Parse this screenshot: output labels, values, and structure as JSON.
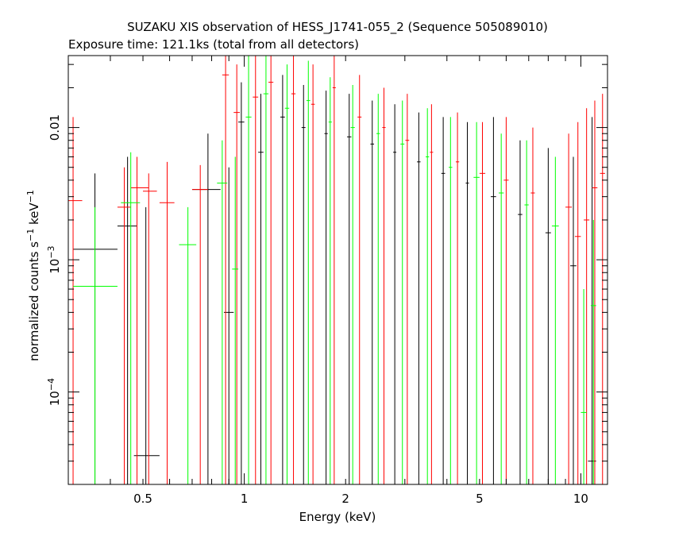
{
  "chart_data": {
    "type": "scatter",
    "title": "SUZAKU XIS observation of HESS_J1741-055_2 (Sequence 505089010)",
    "subtitle": "Exposure time: 121.1ks (total from all detectors)",
    "xlabel": "Energy (keV)",
    "ylabel_parts": {
      "base": "normalized counts s",
      "exp1": "−1",
      "mid": " keV",
      "exp2": "−1"
    },
    "x_scale": "log",
    "y_scale": "log",
    "xlim": [
      0.3,
      12
    ],
    "ylim": [
      2e-05,
      0.035
    ],
    "x_ticks": [
      {
        "value": 0.5,
        "label": "0.5"
      },
      {
        "value": 1,
        "label": "1"
      },
      {
        "value": 2,
        "label": "2"
      },
      {
        "value": 5,
        "label": "5"
      },
      {
        "value": 10,
        "label": "10"
      }
    ],
    "y_ticks": [
      {
        "value": 0.0001,
        "base": "10",
        "exp": "−4"
      },
      {
        "value": 0.001,
        "base": "10",
        "exp": "−3"
      },
      {
        "value": 0.01,
        "base": "0.01",
        "exp": ""
      }
    ],
    "grid": false,
    "legend": "none",
    "series": [
      {
        "color": "#000000",
        "points": [
          {
            "x": 0.36,
            "y": 0.0012,
            "xlo": 0.31,
            "xhi": 0.42,
            "ylo": 2e-05,
            "yhi": 0.0045
          },
          {
            "x": 0.45,
            "y": 0.0018,
            "xlo": 0.42,
            "xhi": 0.48,
            "ylo": 2e-05,
            "yhi": 0.006
          },
          {
            "x": 0.51,
            "y": 3.3e-05,
            "xlo": 0.47,
            "xhi": 0.56,
            "ylo": 2e-05,
            "yhi": 0.0025
          },
          {
            "x": 0.78,
            "y": 0.0034,
            "xlo": 0.7,
            "xhi": 0.85,
            "ylo": 2e-05,
            "yhi": 0.009
          },
          {
            "x": 0.9,
            "y": 0.0004,
            "xlo": 0.87,
            "xhi": 0.93,
            "ylo": 2e-05,
            "yhi": 0.005
          },
          {
            "x": 0.98,
            "y": 0.011,
            "xlo": 0.96,
            "xhi": 1.0,
            "ylo": 2e-05,
            "yhi": 0.022
          },
          {
            "x": 1.12,
            "y": 0.0065,
            "xlo": 1.1,
            "xhi": 1.14,
            "ylo": 2e-05,
            "yhi": 0.018
          },
          {
            "x": 1.3,
            "y": 0.012,
            "xlo": 1.28,
            "xhi": 1.32,
            "ylo": 2e-05,
            "yhi": 0.025
          },
          {
            "x": 1.5,
            "y": 0.01,
            "xlo": 1.48,
            "xhi": 1.52,
            "ylo": 2e-05,
            "yhi": 0.021
          },
          {
            "x": 1.75,
            "y": 0.009,
            "xlo": 1.73,
            "xhi": 1.77,
            "ylo": 2e-05,
            "yhi": 0.019
          },
          {
            "x": 2.05,
            "y": 0.0085,
            "xlo": 2.02,
            "xhi": 2.08,
            "ylo": 2e-05,
            "yhi": 0.018
          },
          {
            "x": 2.4,
            "y": 0.0075,
            "xlo": 2.37,
            "xhi": 2.43,
            "ylo": 2e-05,
            "yhi": 0.016
          },
          {
            "x": 2.8,
            "y": 0.0065,
            "xlo": 2.77,
            "xhi": 2.83,
            "ylo": 2e-05,
            "yhi": 0.015
          },
          {
            "x": 3.3,
            "y": 0.0055,
            "xlo": 3.26,
            "xhi": 3.34,
            "ylo": 2e-05,
            "yhi": 0.013
          },
          {
            "x": 3.9,
            "y": 0.0045,
            "xlo": 3.85,
            "xhi": 3.95,
            "ylo": 2e-05,
            "yhi": 0.012
          },
          {
            "x": 4.6,
            "y": 0.0038,
            "xlo": 4.55,
            "xhi": 4.65,
            "ylo": 2e-05,
            "yhi": 0.011
          },
          {
            "x": 5.5,
            "y": 0.003,
            "xlo": 5.4,
            "xhi": 5.6,
            "ylo": 2e-05,
            "yhi": 0.012
          },
          {
            "x": 6.6,
            "y": 0.0022,
            "xlo": 6.5,
            "xhi": 6.7,
            "ylo": 2e-05,
            "yhi": 0.008
          },
          {
            "x": 8.0,
            "y": 0.0016,
            "xlo": 7.85,
            "xhi": 8.15,
            "ylo": 2e-05,
            "yhi": 0.007
          },
          {
            "x": 9.5,
            "y": 0.0009,
            "xlo": 9.3,
            "xhi": 9.7,
            "ylo": 2e-05,
            "yhi": 0.006
          },
          {
            "x": 10.8,
            "y": 3e-05,
            "xlo": 10.5,
            "xhi": 11.1,
            "ylo": 2e-05,
            "yhi": 0.012
          }
        ]
      },
      {
        "color": "#ff0000",
        "points": [
          {
            "x": 0.31,
            "y": 0.0028,
            "xlo": 0.3,
            "xhi": 0.33,
            "ylo": 2e-05,
            "yhi": 0.012
          },
          {
            "x": 0.44,
            "y": 0.0025,
            "xlo": 0.42,
            "xhi": 0.46,
            "ylo": 2e-05,
            "yhi": 0.005
          },
          {
            "x": 0.48,
            "y": 0.0035,
            "xlo": 0.46,
            "xhi": 0.52,
            "ylo": 2e-05,
            "yhi": 0.006
          },
          {
            "x": 0.52,
            "y": 0.0033,
            "xlo": 0.5,
            "xhi": 0.55,
            "ylo": 2e-05,
            "yhi": 0.0045
          },
          {
            "x": 0.59,
            "y": 0.0027,
            "xlo": 0.56,
            "xhi": 0.62,
            "ylo": 2e-05,
            "yhi": 0.0055
          },
          {
            "x": 0.74,
            "y": 0.0034,
            "xlo": 0.7,
            "xhi": 0.78,
            "ylo": 2e-05,
            "yhi": 0.0052
          },
          {
            "x": 0.88,
            "y": 0.025,
            "xlo": 0.86,
            "xhi": 0.9,
            "ylo": 2e-05,
            "yhi": 0.035
          },
          {
            "x": 0.95,
            "y": 0.013,
            "xlo": 0.93,
            "xhi": 0.97,
            "ylo": 2e-05,
            "yhi": 0.03
          },
          {
            "x": 1.08,
            "y": 0.017,
            "xlo": 1.06,
            "xhi": 1.1,
            "ylo": 2e-05,
            "yhi": 0.035
          },
          {
            "x": 1.2,
            "y": 0.022,
            "xlo": 1.18,
            "xhi": 1.22,
            "ylo": 2e-05,
            "yhi": 0.035
          },
          {
            "x": 1.4,
            "y": 0.018,
            "xlo": 1.38,
            "xhi": 1.42,
            "ylo": 2e-05,
            "yhi": 0.035
          },
          {
            "x": 1.6,
            "y": 0.015,
            "xlo": 1.58,
            "xhi": 1.62,
            "ylo": 2e-05,
            "yhi": 0.03
          },
          {
            "x": 1.85,
            "y": 0.02,
            "xlo": 1.83,
            "xhi": 1.87,
            "ylo": 2e-05,
            "yhi": 0.035
          },
          {
            "x": 2.2,
            "y": 0.012,
            "xlo": 2.17,
            "xhi": 2.23,
            "ylo": 2e-05,
            "yhi": 0.025
          },
          {
            "x": 2.6,
            "y": 0.01,
            "xlo": 2.57,
            "xhi": 2.63,
            "ylo": 2e-05,
            "yhi": 0.02
          },
          {
            "x": 3.05,
            "y": 0.008,
            "xlo": 3.01,
            "xhi": 3.09,
            "ylo": 2e-05,
            "yhi": 0.018
          },
          {
            "x": 3.6,
            "y": 0.0065,
            "xlo": 3.56,
            "xhi": 3.64,
            "ylo": 2e-05,
            "yhi": 0.015
          },
          {
            "x": 4.3,
            "y": 0.0055,
            "xlo": 4.25,
            "xhi": 4.35,
            "ylo": 2e-05,
            "yhi": 0.013
          },
          {
            "x": 5.1,
            "y": 0.0045,
            "xlo": 5.0,
            "xhi": 5.2,
            "ylo": 2e-05,
            "yhi": 0.011
          },
          {
            "x": 6.0,
            "y": 0.004,
            "xlo": 5.9,
            "xhi": 6.1,
            "ylo": 2e-05,
            "yhi": 0.012
          },
          {
            "x": 7.2,
            "y": 0.0032,
            "xlo": 7.1,
            "xhi": 7.3,
            "ylo": 2e-05,
            "yhi": 0.01
          },
          {
            "x": 9.2,
            "y": 0.0025,
            "xlo": 9.0,
            "xhi": 9.4,
            "ylo": 2e-05,
            "yhi": 0.009
          },
          {
            "x": 9.8,
            "y": 0.0015,
            "xlo": 9.6,
            "xhi": 10.0,
            "ylo": 2e-05,
            "yhi": 0.011
          },
          {
            "x": 10.4,
            "y": 0.002,
            "xlo": 10.2,
            "xhi": 10.6,
            "ylo": 2e-05,
            "yhi": 0.014
          },
          {
            "x": 11.0,
            "y": 0.0035,
            "xlo": 10.8,
            "xhi": 11.2,
            "ylo": 2e-05,
            "yhi": 0.016
          },
          {
            "x": 11.6,
            "y": 0.0045,
            "xlo": 11.4,
            "xhi": 11.8,
            "ylo": 2e-05,
            "yhi": 0.018
          }
        ]
      },
      {
        "color": "#00ff00",
        "points": [
          {
            "x": 0.36,
            "y": 0.00063,
            "xlo": 0.31,
            "xhi": 0.42,
            "ylo": 2e-05,
            "yhi": 0.0025
          },
          {
            "x": 0.46,
            "y": 0.0027,
            "xlo": 0.43,
            "xhi": 0.49,
            "ylo": 2e-05,
            "yhi": 0.0065
          },
          {
            "x": 0.68,
            "y": 0.0013,
            "xlo": 0.64,
            "xhi": 0.72,
            "ylo": 2e-05,
            "yhi": 0.0025
          },
          {
            "x": 0.86,
            "y": 0.0038,
            "xlo": 0.83,
            "xhi": 0.89,
            "ylo": 2e-05,
            "yhi": 0.008
          },
          {
            "x": 0.94,
            "y": 0.00085,
            "xlo": 0.92,
            "xhi": 0.96,
            "ylo": 2e-05,
            "yhi": 0.006
          },
          {
            "x": 1.03,
            "y": 0.012,
            "xlo": 1.01,
            "xhi": 1.05,
            "ylo": 2e-05,
            "yhi": 0.035
          },
          {
            "x": 1.16,
            "y": 0.018,
            "xlo": 1.14,
            "xhi": 1.18,
            "ylo": 2e-05,
            "yhi": 0.035
          },
          {
            "x": 1.34,
            "y": 0.014,
            "xlo": 1.32,
            "xhi": 1.36,
            "ylo": 2e-05,
            "yhi": 0.03
          },
          {
            "x": 1.55,
            "y": 0.016,
            "xlo": 1.53,
            "xhi": 1.57,
            "ylo": 2e-05,
            "yhi": 0.032
          },
          {
            "x": 1.8,
            "y": 0.011,
            "xlo": 1.78,
            "xhi": 1.82,
            "ylo": 2e-05,
            "yhi": 0.024
          },
          {
            "x": 2.1,
            "y": 0.01,
            "xlo": 2.07,
            "xhi": 2.13,
            "ylo": 2e-05,
            "yhi": 0.021
          },
          {
            "x": 2.5,
            "y": 0.009,
            "xlo": 2.47,
            "xhi": 2.53,
            "ylo": 2e-05,
            "yhi": 0.018
          },
          {
            "x": 2.95,
            "y": 0.0075,
            "xlo": 2.91,
            "xhi": 2.99,
            "ylo": 2e-05,
            "yhi": 0.016
          },
          {
            "x": 3.5,
            "y": 0.006,
            "xlo": 3.46,
            "xhi": 3.54,
            "ylo": 2e-05,
            "yhi": 0.014
          },
          {
            "x": 4.1,
            "y": 0.005,
            "xlo": 4.05,
            "xhi": 4.15,
            "ylo": 2e-05,
            "yhi": 0.012
          },
          {
            "x": 4.9,
            "y": 0.0042,
            "xlo": 4.8,
            "xhi": 5.0,
            "ylo": 2e-05,
            "yhi": 0.011
          },
          {
            "x": 5.8,
            "y": 0.0032,
            "xlo": 5.7,
            "xhi": 5.9,
            "ylo": 2e-05,
            "yhi": 0.009
          },
          {
            "x": 6.9,
            "y": 0.0026,
            "xlo": 6.8,
            "xhi": 7.0,
            "ylo": 2e-05,
            "yhi": 0.008
          },
          {
            "x": 8.4,
            "y": 0.0018,
            "xlo": 8.2,
            "xhi": 8.6,
            "ylo": 2e-05,
            "yhi": 0.006
          },
          {
            "x": 10.2,
            "y": 7e-05,
            "xlo": 10.0,
            "xhi": 10.4,
            "ylo": 2e-05,
            "yhi": 0.0006
          },
          {
            "x": 10.9,
            "y": 0.00045,
            "xlo": 10.7,
            "xhi": 11.1,
            "ylo": 2e-05,
            "yhi": 0.002
          }
        ]
      }
    ]
  }
}
